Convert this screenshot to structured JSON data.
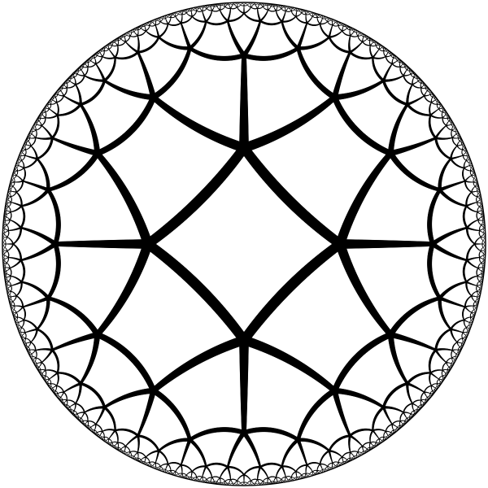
{
  "diagram": {
    "kind": "hyperbolic-tiling",
    "model": "poincare-disk",
    "central_cell_sides": 4,
    "cells_at_vertex": 5,
    "colors": {
      "background": "#ffffff",
      "line": "#000000"
    }
  }
}
